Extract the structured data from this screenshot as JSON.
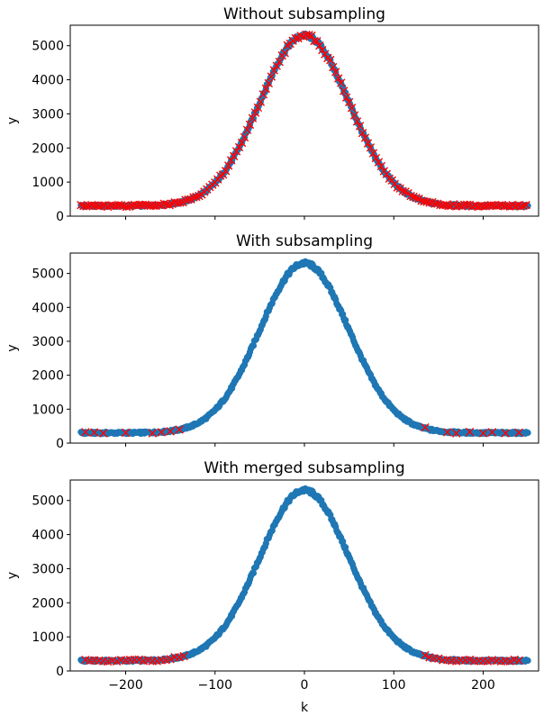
{
  "chart_data": [
    {
      "type": "scatter",
      "title": "Without subsampling",
      "xlabel": "",
      "ylabel": "y",
      "xlim": [
        -262,
        262
      ],
      "ylim": [
        0,
        5600
      ],
      "xticks": [
        -200,
        -100,
        0,
        100,
        200
      ],
      "show_xtick_labels": false,
      "yticks": [
        0,
        1000,
        2000,
        3000,
        4000,
        5000
      ],
      "ytick_labels": [
        "0",
        "1000",
        "2000",
        "3000",
        "4000",
        "5000"
      ],
      "grid": false,
      "curve": {
        "baseline": 300,
        "amplitude": 5000,
        "sigma": 50,
        "x_range": [
          -250,
          250
        ],
        "point_count": 501
      },
      "series": [
        {
          "marker": "circle",
          "color": "#1f77b4",
          "x_range": [
            -250,
            250
          ],
          "step": 1
        },
        {
          "marker": "x",
          "color": "#ff0000",
          "x_range": [
            -250,
            250
          ],
          "step": 3
        }
      ]
    },
    {
      "type": "scatter",
      "title": "With subsampling",
      "xlabel": "",
      "ylabel": "y",
      "xlim": [
        -262,
        262
      ],
      "ylim": [
        0,
        5600
      ],
      "xticks": [
        -200,
        -100,
        0,
        100,
        200
      ],
      "show_xtick_labels": false,
      "yticks": [
        0,
        1000,
        2000,
        3000,
        4000,
        5000
      ],
      "ytick_labels": [
        "0",
        "1000",
        "2000",
        "3000",
        "4000",
        "5000"
      ],
      "grid": false,
      "curve": {
        "baseline": 300,
        "amplitude": 5000,
        "sigma": 50,
        "x_range": [
          -250,
          250
        ],
        "point_count": 501
      },
      "series": [
        {
          "marker": "circle",
          "color": "#1f77b4",
          "x_range": [
            -250,
            250
          ],
          "step": 1
        },
        {
          "marker": "x",
          "color": "#ff0000",
          "x": [
            -245,
            -235,
            -225,
            -200,
            -170,
            -160,
            -150,
            -140,
            135,
            160,
            170,
            185,
            200,
            210,
            225,
            240
          ]
        }
      ]
    },
    {
      "type": "scatter",
      "title": "With merged subsampling",
      "xlabel": "k",
      "ylabel": "y",
      "xlim": [
        -262,
        262
      ],
      "ylim": [
        0,
        5600
      ],
      "xticks": [
        -200,
        -100,
        0,
        100,
        200
      ],
      "show_xtick_labels": true,
      "xtick_labels": [
        "−200",
        "−100",
        "0",
        "100",
        "200"
      ],
      "yticks": [
        0,
        1000,
        2000,
        3000,
        4000,
        5000
      ],
      "ytick_labels": [
        "0",
        "1000",
        "2000",
        "3000",
        "4000",
        "5000"
      ],
      "grid": false,
      "curve": {
        "baseline": 300,
        "amplitude": 5000,
        "sigma": 50,
        "x_range": [
          -250,
          250
        ],
        "point_count": 501
      },
      "series": [
        {
          "marker": "circle",
          "color": "#1f77b4",
          "x_range": [
            -250,
            250
          ],
          "step": 1
        },
        {
          "marker": "x",
          "color": "#ff0000",
          "x": [
            -245,
            -240,
            -235,
            -230,
            -225,
            -220,
            -215,
            -210,
            -205,
            -200,
            -195,
            -190,
            -185,
            -180,
            -175,
            -170,
            -165,
            -160,
            -155,
            -150,
            -145,
            -140,
            -135,
            135,
            140,
            145,
            150,
            155,
            160,
            165,
            170,
            175,
            180,
            185,
            190,
            195,
            200,
            205,
            210,
            215,
            220,
            225,
            230,
            235,
            240
          ]
        }
      ]
    }
  ]
}
